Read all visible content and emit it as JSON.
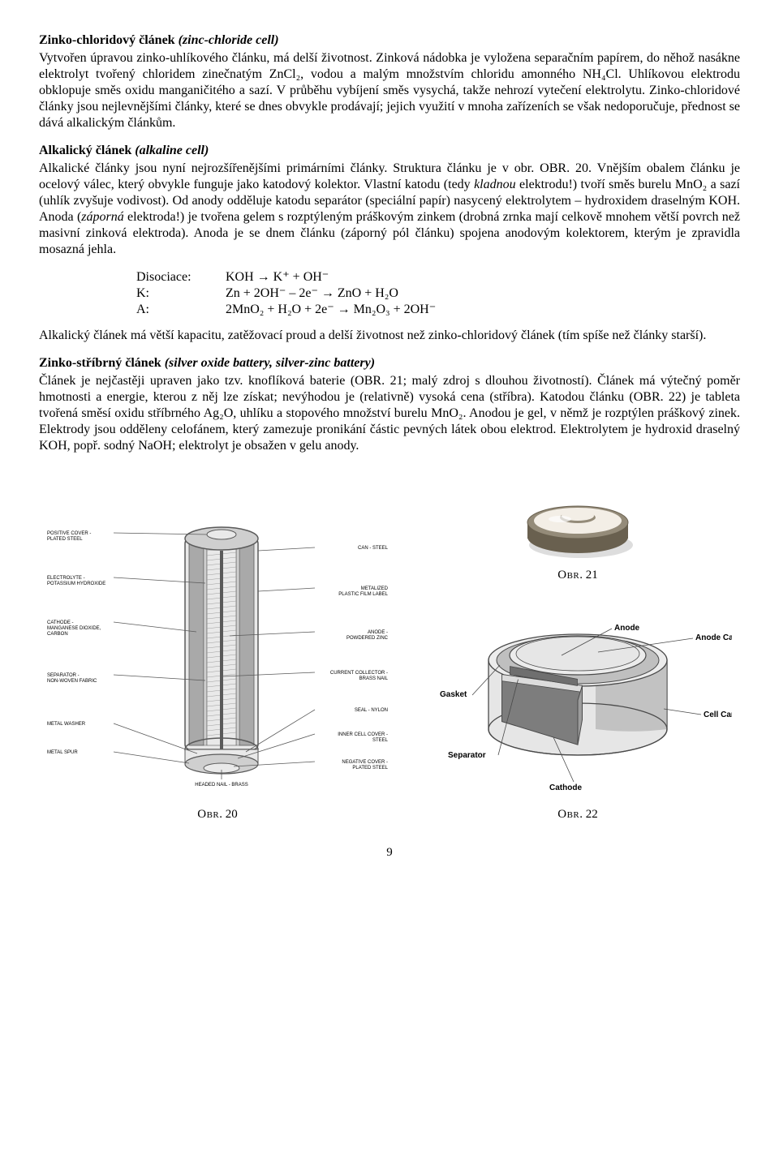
{
  "sec1": {
    "heading_bold": "Zinko-chloridový článek",
    "heading_ital": "(zinc-chloride cell)",
    "body": "Vytvořen úpravou zinko-uhlíkového článku, má delší životnost. Zinková nádobka je vyložena separačním papírem, do něhož nasákne elektrolyt tvořený chloridem zinečnatým ZnCl₂, vodou a malým množstvím chloridu amonného NH₄Cl. Uhlíkovou elektrodu obklopuje směs oxidu manganičitého a sazí. V průběhu vybíjení směs vysychá, takže nehrozí vytečení elektrolytu. Zinko-chloridové články jsou nejlevnějšími články, které se dnes obvykle prodávají; jejich využití v mnoha zařízeních se však nedoporučuje, přednost se dává alkalickým článkům."
  },
  "sec2": {
    "heading_bold": "Alkalický článek",
    "heading_ital": "(alkaline cell)",
    "body_a": "Alkalické články jsou nyní nejrozšířenějšími primárními články. Struktura článku je v obr. ",
    "obr_ref_a": "OBR",
    "obr_num_a": ". 20. ",
    "body_b": "Vnějším obalem článku je ocelový válec, který obvykle funguje jako katodový kolektor. Vlastní katodu (tedy ",
    "kladnou": "kladnou",
    "body_c": " elektrodu!) tvoří směs burelu MnO₂ a sazí (uhlík zvyšuje vodivost). Od anody odděluje katodu separátor (speciální papír) nasycený elektrolytem – hydroxidem draselným KOH. Anoda (",
    "zaporna": "záporná",
    "body_d": " elektroda!) je tvořena gelem s rozptýleným práškovým zinkem (drobná zrnka mají celkově mnohem větší povrch než masivní zinková elektroda). Anoda je se dnem článku (záporný pól článku) spojena anodovým kolektorem, kterým je zpravidla mosazná jehla."
  },
  "eq": {
    "l1_label": "Disociace:",
    "l1_body": "KOH → K⁺ + OH⁻",
    "l2_label": "K:",
    "l2_body": "Zn + 2OH⁻ – 2e⁻ → ZnO + H₂O",
    "l3_label": "A:",
    "l3_body": "2MnO₂ + H₂O + 2e⁻ →  Mn₂O₃ + 2OH⁻"
  },
  "sec2b": {
    "body": "Alkalický článek má větší kapacitu, zatěžovací proud a delší životnost než zinko-chloridový článek (tím spíše než články starší)."
  },
  "sec3": {
    "heading_bold": "Zinko-stříbrný článek",
    "heading_ital": "(silver oxide battery, silver-zinc battery)",
    "body_a": "Článek je nejčastěji upraven jako tzv. knoflíková baterie (",
    "obr_ref_a": "OBR",
    "body_a2": ". 21; malý zdroj s dlouhou životností). Článek má výtečný poměr hmotnosti a energie, kterou z něj lze získat; nevýhodou je (relativně) vysoká cena (stříbra). Katodou článku (",
    "obr_ref_b": "OBR",
    "body_b": ". 22) je tableta tvořená směsí oxidu stříbrného Ag₂O, uhlíku a stopového množství burelu MnO₂. Anodou je gel, v němž je rozptýlen práškový zinek. Elektrody jsou odděleny celofánem, který zamezuje pronikání částic pevných látek obou elektrod. Elektrolytem je hydroxid draselný KOH, popř. sodný NaOH; elektrolyt je obsažen v gelu anody."
  },
  "fig20": {
    "caption_sc": "Obr",
    "caption_num": ". 20",
    "labels": {
      "pos_cover": "POSITIVE COVER -\nPLATED STEEL",
      "electrolyte": "ELECTROLYTE -\nPOTASSIUM HYDROXIDE",
      "cathode": "CATHODE -\nMANGANESE DIOXIDE,\nCARBON",
      "separator": "SEPARATOR -\nNON-WOVEN FABRIC",
      "metal_washer": "METAL WASHER",
      "metal_spur": "METAL SPUR",
      "can_steel": "CAN - STEEL",
      "metalized": "METALIZED\nPLASTIC FILM LABEL",
      "anode": "ANODE -\nPOWDERED ZINC",
      "collector": "CURRENT COLLECTOR -\nBRASS NAIL",
      "seal": "SEAL - NYLON",
      "inner_cover": "INNER CELL COVER -\nSTEEL",
      "neg_cover": "NEGATIVE COVER -\nPLATED STEEL",
      "headed_nail": "HEADED NAIL - BRASS"
    },
    "colors": {
      "outline": "#5a5a5a",
      "fill_light": "#e9e9e9",
      "fill_mid": "#cfcfcf",
      "fill_dark": "#a9a9a9",
      "hatch": "#8a8a8a"
    },
    "label_fontsize": 6
  },
  "fig21": {
    "caption_sc": "Obr",
    "caption_num": ". 21",
    "colors": {
      "top_light": "#f3eee6",
      "top_shadow": "#948b79",
      "rim": "#69604f",
      "bg": "#ffffff"
    }
  },
  "fig22": {
    "caption_sc": "Obr",
    "caption_num": ". 22",
    "labels": {
      "gasket": "Gasket",
      "separator": "Separator",
      "cathode": "Cathode",
      "anode": "Anode",
      "anode_cap": "Anode Cap",
      "cell_can": "Cell Can"
    },
    "colors": {
      "top": "#ececec",
      "side_light": "#e6e6e6",
      "side_dark": "#9d9d9d",
      "gasket": "#bfbfbf",
      "cathode": "#7d7d7d",
      "separator": "#dcdcdc",
      "anode": "#6f6f6f",
      "outline": "#4a4a4a",
      "text": "#000000"
    },
    "label_fontsize": 10
  },
  "pagenum": "9"
}
